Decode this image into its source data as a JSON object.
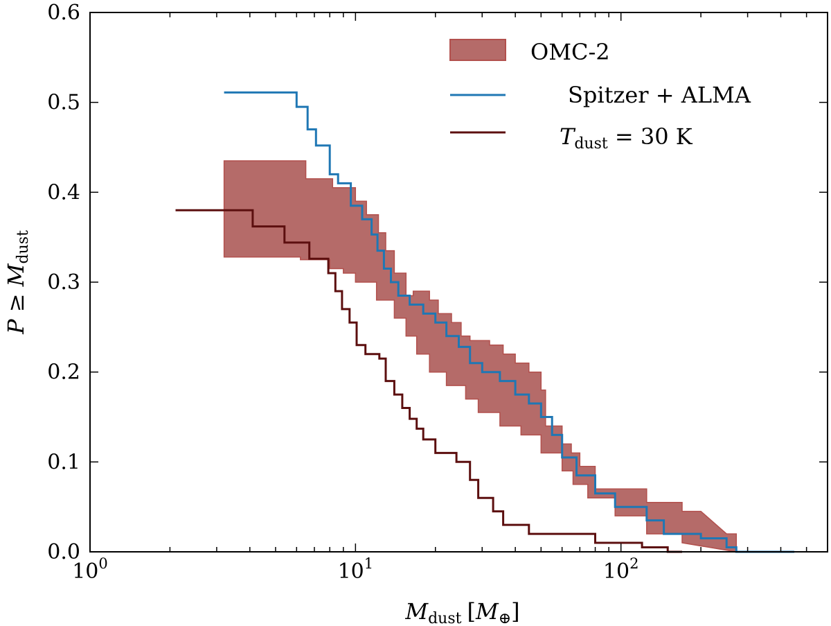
{
  "chart_data": {
    "type": "line",
    "title": "",
    "xlabel": {
      "main": "M",
      "sub": "dust",
      "bracket_open": "[",
      "unit_main": "M",
      "unit_sub": "⊕",
      "bracket_close": "]"
    },
    "ylabel": {
      "prefix": "P ≥ ",
      "main": "M",
      "sub": "dust"
    },
    "xscale": "log",
    "xlim": [
      1,
      600
    ],
    "ylim": [
      0,
      0.6
    ],
    "x_ticks": [
      {
        "value": 1,
        "base": "10",
        "exp": "0"
      },
      {
        "value": 10,
        "base": "10",
        "exp": "1"
      },
      {
        "value": 100,
        "base": "10",
        "exp": "2"
      }
    ],
    "y_ticks": [
      {
        "value": 0.0,
        "label": "0.0"
      },
      {
        "value": 0.1,
        "label": "0.1"
      },
      {
        "value": 0.2,
        "label": "0.2"
      },
      {
        "value": 0.3,
        "label": "0.3"
      },
      {
        "value": 0.4,
        "label": "0.4"
      },
      {
        "value": 0.5,
        "label": "0.5"
      },
      {
        "value": 0.6,
        "label": "0.6"
      }
    ],
    "grid": false,
    "legend_position": "top-right",
    "band": {
      "name": "OMC-2",
      "fill": "#b56b69",
      "edge": "#b2504d",
      "upper": [
        [
          3.2,
          0.435
        ],
        [
          6.5,
          0.435
        ],
        [
          6.5,
          0.415
        ],
        [
          8.2,
          0.415
        ],
        [
          8.2,
          0.405
        ],
        [
          10.0,
          0.405
        ],
        [
          10.0,
          0.39
        ],
        [
          11.0,
          0.39
        ],
        [
          11.0,
          0.375
        ],
        [
          12.2,
          0.375
        ],
        [
          12.2,
          0.355
        ],
        [
          13.0,
          0.355
        ],
        [
          13.0,
          0.335
        ],
        [
          14.0,
          0.335
        ],
        [
          14.0,
          0.31
        ],
        [
          15.5,
          0.31
        ],
        [
          15.5,
          0.285
        ],
        [
          16.5,
          0.285
        ],
        [
          16.5,
          0.29
        ],
        [
          19.0,
          0.29
        ],
        [
          19.0,
          0.28
        ],
        [
          20.5,
          0.28
        ],
        [
          20.5,
          0.265
        ],
        [
          23.0,
          0.265
        ],
        [
          23.0,
          0.255
        ],
        [
          25.0,
          0.255
        ],
        [
          25.0,
          0.24
        ],
        [
          27.0,
          0.24
        ],
        [
          27.0,
          0.235
        ],
        [
          32.0,
          0.235
        ],
        [
          32.0,
          0.23
        ],
        [
          36.0,
          0.23
        ],
        [
          36.0,
          0.22
        ],
        [
          40.0,
          0.22
        ],
        [
          40.0,
          0.21
        ],
        [
          45.0,
          0.21
        ],
        [
          45.0,
          0.2
        ],
        [
          50.0,
          0.2
        ],
        [
          50.0,
          0.18
        ],
        [
          52.0,
          0.18
        ],
        [
          52.0,
          0.14
        ],
        [
          60.0,
          0.14
        ],
        [
          60.0,
          0.12
        ],
        [
          65.0,
          0.12
        ],
        [
          65.0,
          0.11
        ],
        [
          70.0,
          0.11
        ],
        [
          70.0,
          0.095
        ],
        [
          80.0,
          0.095
        ],
        [
          80.0,
          0.07
        ],
        [
          125.0,
          0.07
        ],
        [
          125.0,
          0.055
        ],
        [
          170.0,
          0.055
        ],
        [
          170.0,
          0.045
        ],
        [
          200.0,
          0.045
        ],
        [
          250.0,
          0.02
        ],
        [
          272.0,
          0.02
        ],
        [
          272.0,
          0.0
        ]
      ],
      "lower": [
        [
          3.2,
          0.328
        ],
        [
          6.2,
          0.328
        ],
        [
          6.2,
          0.325
        ],
        [
          8.0,
          0.325
        ],
        [
          8.0,
          0.315
        ],
        [
          9.0,
          0.315
        ],
        [
          9.0,
          0.31
        ],
        [
          10.0,
          0.31
        ],
        [
          10.0,
          0.3
        ],
        [
          12.0,
          0.3
        ],
        [
          12.0,
          0.28
        ],
        [
          14.0,
          0.28
        ],
        [
          14.0,
          0.26
        ],
        [
          15.5,
          0.26
        ],
        [
          15.5,
          0.24
        ],
        [
          17.0,
          0.24
        ],
        [
          17.0,
          0.22
        ],
        [
          19.0,
          0.22
        ],
        [
          19.0,
          0.2
        ],
        [
          22.0,
          0.2
        ],
        [
          22.0,
          0.185
        ],
        [
          26.0,
          0.185
        ],
        [
          26.0,
          0.17
        ],
        [
          29.0,
          0.17
        ],
        [
          29.0,
          0.155
        ],
        [
          35.0,
          0.155
        ],
        [
          35.0,
          0.14
        ],
        [
          42.0,
          0.14
        ],
        [
          42.0,
          0.13
        ],
        [
          50.0,
          0.13
        ],
        [
          50.0,
          0.11
        ],
        [
          60.0,
          0.11
        ],
        [
          60.0,
          0.09
        ],
        [
          66.0,
          0.09
        ],
        [
          66.0,
          0.075
        ],
        [
          75.0,
          0.075
        ],
        [
          75.0,
          0.06
        ],
        [
          95.0,
          0.06
        ],
        [
          95.0,
          0.04
        ],
        [
          125.0,
          0.04
        ],
        [
          125.0,
          0.02
        ],
        [
          170.0,
          0.02
        ],
        [
          170.0,
          0.01
        ],
        [
          272.0,
          0.0
        ]
      ]
    },
    "series": [
      {
        "name": "Spitzer + ALMA",
        "color": "#1f77b4",
        "points": [
          [
            3.2,
            0.511
          ],
          [
            6.0,
            0.511
          ],
          [
            6.0,
            0.495
          ],
          [
            6.6,
            0.495
          ],
          [
            6.6,
            0.47
          ],
          [
            7.1,
            0.47
          ],
          [
            7.1,
            0.452
          ],
          [
            8.0,
            0.452
          ],
          [
            8.0,
            0.42
          ],
          [
            8.6,
            0.42
          ],
          [
            8.6,
            0.41
          ],
          [
            9.6,
            0.41
          ],
          [
            9.6,
            0.385
          ],
          [
            10.6,
            0.385
          ],
          [
            10.6,
            0.37
          ],
          [
            11.5,
            0.37
          ],
          [
            11.5,
            0.353
          ],
          [
            12.1,
            0.353
          ],
          [
            12.1,
            0.335
          ],
          [
            12.8,
            0.335
          ],
          [
            12.8,
            0.315
          ],
          [
            13.6,
            0.315
          ],
          [
            13.6,
            0.3
          ],
          [
            14.5,
            0.3
          ],
          [
            14.5,
            0.285
          ],
          [
            16.0,
            0.285
          ],
          [
            16.0,
            0.275
          ],
          [
            18.0,
            0.275
          ],
          [
            18.0,
            0.265
          ],
          [
            20.0,
            0.265
          ],
          [
            20.0,
            0.255
          ],
          [
            22.0,
            0.255
          ],
          [
            22.0,
            0.24
          ],
          [
            24.5,
            0.24
          ],
          [
            24.5,
            0.228
          ],
          [
            27.0,
            0.228
          ],
          [
            27.0,
            0.21
          ],
          [
            30.0,
            0.21
          ],
          [
            30.0,
            0.2
          ],
          [
            35.0,
            0.2
          ],
          [
            35.0,
            0.19
          ],
          [
            40.0,
            0.19
          ],
          [
            40.0,
            0.175
          ],
          [
            45.0,
            0.175
          ],
          [
            45.0,
            0.165
          ],
          [
            50.0,
            0.165
          ],
          [
            50.0,
            0.15
          ],
          [
            55.0,
            0.15
          ],
          [
            55.0,
            0.13
          ],
          [
            60.0,
            0.13
          ],
          [
            60.0,
            0.105
          ],
          [
            68.0,
            0.105
          ],
          [
            68.0,
            0.085
          ],
          [
            80.0,
            0.085
          ],
          [
            80.0,
            0.065
          ],
          [
            95.0,
            0.065
          ],
          [
            95.0,
            0.05
          ],
          [
            125.0,
            0.05
          ],
          [
            125.0,
            0.035
          ],
          [
            145.0,
            0.035
          ],
          [
            145.0,
            0.02
          ],
          [
            200.0,
            0.02
          ],
          [
            200.0,
            0.015
          ],
          [
            250.0,
            0.015
          ],
          [
            250.0,
            0.005
          ],
          [
            272.0,
            0.005
          ],
          [
            272.0,
            0.0
          ],
          [
            450.0,
            0.0
          ]
        ]
      },
      {
        "name": "T_dust = 30 K",
        "color": "#5c0f0f",
        "points": [
          [
            2.1,
            0.38
          ],
          [
            4.1,
            0.38
          ],
          [
            4.1,
            0.362
          ],
          [
            5.4,
            0.362
          ],
          [
            5.4,
            0.344
          ],
          [
            6.7,
            0.344
          ],
          [
            6.7,
            0.326
          ],
          [
            7.9,
            0.326
          ],
          [
            7.9,
            0.31
          ],
          [
            8.4,
            0.31
          ],
          [
            8.4,
            0.29
          ],
          [
            8.9,
            0.29
          ],
          [
            8.9,
            0.27
          ],
          [
            9.5,
            0.27
          ],
          [
            9.5,
            0.255
          ],
          [
            10.1,
            0.255
          ],
          [
            10.1,
            0.23
          ],
          [
            10.9,
            0.23
          ],
          [
            10.9,
            0.22
          ],
          [
            12.3,
            0.22
          ],
          [
            12.3,
            0.215
          ],
          [
            13.0,
            0.215
          ],
          [
            13.0,
            0.19
          ],
          [
            14.0,
            0.19
          ],
          [
            14.0,
            0.175
          ],
          [
            15.0,
            0.175
          ],
          [
            15.0,
            0.16
          ],
          [
            16.0,
            0.16
          ],
          [
            16.0,
            0.148
          ],
          [
            17.0,
            0.148
          ],
          [
            17.0,
            0.137
          ],
          [
            18.0,
            0.137
          ],
          [
            18.0,
            0.125
          ],
          [
            20.0,
            0.125
          ],
          [
            20.0,
            0.11
          ],
          [
            24.0,
            0.11
          ],
          [
            24.0,
            0.1
          ],
          [
            27.0,
            0.1
          ],
          [
            27.0,
            0.08
          ],
          [
            29.0,
            0.08
          ],
          [
            29.0,
            0.06
          ],
          [
            33.0,
            0.06
          ],
          [
            33.0,
            0.045
          ],
          [
            36.0,
            0.045
          ],
          [
            36.0,
            0.03
          ],
          [
            45.0,
            0.03
          ],
          [
            45.0,
            0.02
          ],
          [
            80.0,
            0.02
          ],
          [
            80.0,
            0.01
          ],
          [
            120.0,
            0.01
          ],
          [
            120.0,
            0.005
          ],
          [
            150.0,
            0.005
          ],
          [
            150.0,
            0.0
          ],
          [
            170.0,
            0.0
          ]
        ]
      }
    ],
    "legend": [
      {
        "kind": "band",
        "label": "OMC-2"
      },
      {
        "kind": "line",
        "series": 0,
        "label": "Spitzer + ALMA"
      },
      {
        "kind": "line",
        "series": 1,
        "label_main": "T",
        "label_sub": "dust",
        "label_rest": " = 30 K"
      }
    ]
  }
}
